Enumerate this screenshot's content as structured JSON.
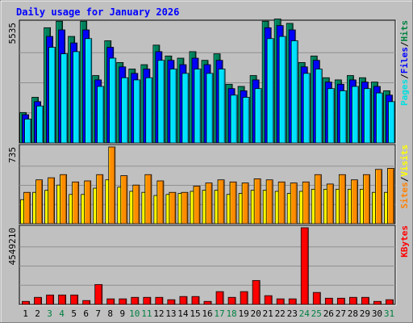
{
  "chart_data": {
    "type": "bar",
    "title": "Daily usage for January 2026",
    "days": [
      "1",
      "2",
      "3",
      "4",
      "5",
      "6",
      "7",
      "8",
      "9",
      "10",
      "11",
      "12",
      "13",
      "14",
      "15",
      "16",
      "17",
      "18",
      "19",
      "20",
      "21",
      "22",
      "23",
      "24",
      "25",
      "26",
      "27",
      "28",
      "29",
      "30",
      "31"
    ],
    "weekend_days": [
      "3",
      "4",
      "10",
      "11",
      "17",
      "18",
      "24",
      "25",
      "31"
    ],
    "panels": [
      {
        "id": "hits",
        "ymax": 5535,
        "ymax_label": "5535",
        "legend": [
          {
            "label": "Pages",
            "color": "#00e0e0"
          },
          {
            "label": "/",
            "color": "#000000"
          },
          {
            "label": "Files",
            "color": "#0000ff"
          },
          {
            "label": "/",
            "color": "#000000"
          },
          {
            "label": "Hits",
            "color": "#008040"
          }
        ],
        "series": [
          {
            "name": "Hits",
            "color": "#00805c",
            "values": [
              1400,
              2100,
              5300,
              5600,
              4900,
              5600,
              3100,
              4700,
              3700,
              3400,
              3600,
              4500,
              4000,
              3900,
              4200,
              3800,
              4100,
              2700,
              2600,
              3100,
              5600,
              5700,
              5500,
              3700,
              4000,
              3000,
              2900,
              3100,
              3000,
              2800,
              2400
            ]
          },
          {
            "name": "Files",
            "color": "#0000ff",
            "values": [
              1300,
              1900,
              4900,
              5200,
              4600,
              5200,
              2900,
              4400,
              3500,
              3200,
              3400,
              4200,
              3800,
              3600,
              3900,
              3600,
              3800,
              2500,
              2400,
              2900,
              5300,
              5400,
              5200,
              3500,
              3800,
              2800,
              2700,
              2900,
              2800,
              2600,
              2200
            ]
          },
          {
            "name": "Pages",
            "color": "#00e0ff",
            "values": [
              1100,
              1700,
              4400,
              4100,
              4200,
              4800,
              2600,
              3900,
              3000,
              2900,
              3000,
              3800,
              3400,
              3200,
              3400,
              3200,
              3400,
              2200,
              2100,
              2500,
              4800,
              4900,
              4700,
              3200,
              3400,
              2500,
              2400,
              2600,
              2500,
              2300,
              1900
            ]
          }
        ]
      },
      {
        "id": "visits",
        "ymax": 735,
        "ymax_label": "735",
        "legend": [
          {
            "label": "Sites",
            "color": "#ff8000"
          },
          {
            "label": "/",
            "color": "#000000"
          },
          {
            "label": "Visits",
            "color": "#ffff00"
          }
        ],
        "series": [
          {
            "name": "Visits",
            "color": "#ffff00",
            "values": [
              230,
              300,
              320,
              370,
              280,
              280,
              340,
              420,
              350,
              310,
              300,
              270,
              280,
              290,
              310,
              320,
              320,
              280,
              290,
              320,
              320,
              310,
              290,
              310,
              330,
              330,
              330,
              330,
              330,
              300,
              300
            ]
          },
          {
            "name": "Sites",
            "color": "#ff8c00",
            "values": [
              300,
              420,
              440,
              470,
              400,
              410,
              470,
              735,
              460,
              370,
              470,
              410,
              300,
              300,
              360,
              390,
              420,
              400,
              390,
              430,
              420,
              400,
              390,
              400,
              470,
              380,
              470,
              420,
              470,
              520,
              530
            ]
          }
        ]
      },
      {
        "id": "kbytes",
        "ymax": 4549210,
        "ymax_label": "4549210",
        "legend": [
          {
            "label": "KBytes",
            "color": "#ff0000"
          }
        ],
        "series": [
          {
            "name": "KBytes",
            "color": "#ff0000",
            "values": [
              180000,
              420000,
              560000,
              560000,
              560000,
              230000,
              1180000,
              330000,
              330000,
              420000,
              420000,
              420000,
              280000,
              470000,
              470000,
              180000,
              760000,
              420000,
              760000,
              1420000,
              520000,
              330000,
              330000,
              4549210,
              710000,
              370000,
              370000,
              420000,
              420000,
              180000,
              280000
            ]
          }
        ]
      }
    ]
  }
}
